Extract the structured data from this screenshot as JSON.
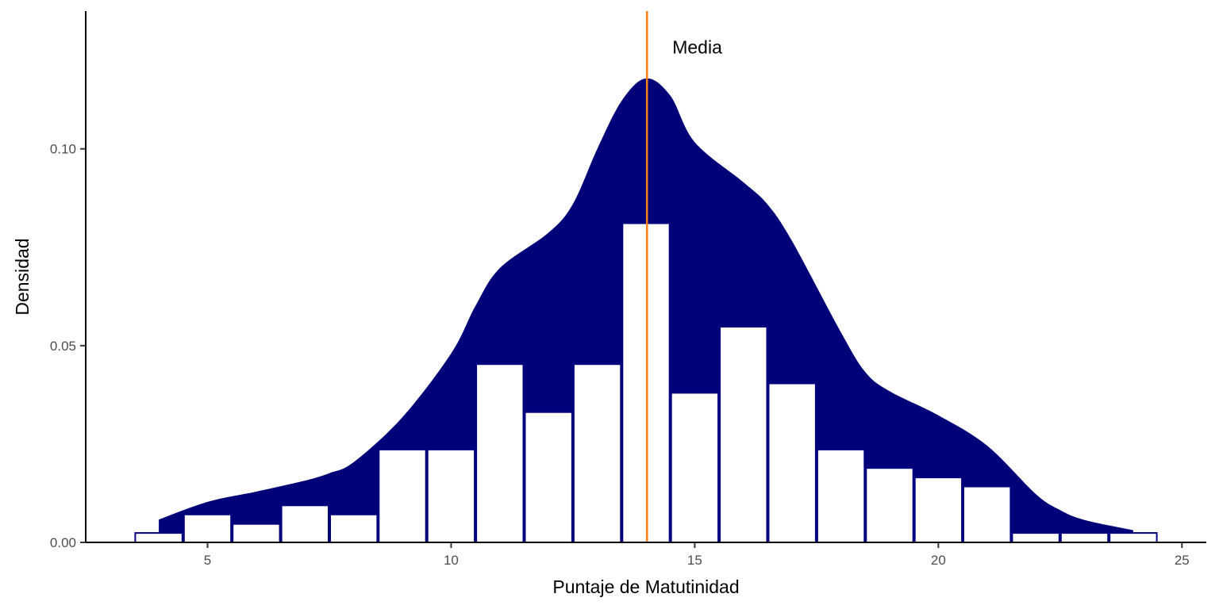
{
  "chart_data": {
    "type": "bar",
    "subtype": "histogram with density overlay",
    "xlabel": "Puntaje de Matutinidad",
    "ylabel": "Densidad",
    "xlim": [
      2.5,
      25.5
    ],
    "ylim": [
      0,
      0.135
    ],
    "x_ticks": [
      5,
      10,
      15,
      20,
      25
    ],
    "x_tick_labels": [
      "5",
      "10",
      "15",
      "20",
      "25"
    ],
    "y_ticks": [
      0,
      0.05,
      0.1
    ],
    "y_tick_labels": [
      "0.00",
      "0.05",
      "0.10"
    ],
    "grid": false,
    "histogram": {
      "bin_width": 1,
      "bins": [
        {
          "x": 4,
          "density": 0.0024
        },
        {
          "x": 5,
          "density": 0.0071
        },
        {
          "x": 6,
          "density": 0.0047
        },
        {
          "x": 7,
          "density": 0.0094
        },
        {
          "x": 8,
          "density": 0.0071
        },
        {
          "x": 9,
          "density": 0.0236
        },
        {
          "x": 10,
          "density": 0.0236
        },
        {
          "x": 11,
          "density": 0.0453
        },
        {
          "x": 12,
          "density": 0.0331
        },
        {
          "x": 13,
          "density": 0.0453
        },
        {
          "x": 14,
          "density": 0.0811
        },
        {
          "x": 15,
          "density": 0.038
        },
        {
          "x": 16,
          "density": 0.0548
        },
        {
          "x": 17,
          "density": 0.0404
        },
        {
          "x": 18,
          "density": 0.0236
        },
        {
          "x": 19,
          "density": 0.0189
        },
        {
          "x": 20,
          "density": 0.0165
        },
        {
          "x": 21,
          "density": 0.0142
        },
        {
          "x": 22,
          "density": 0.0024
        },
        {
          "x": 23,
          "density": 0.0024
        },
        {
          "x": 24,
          "density": 0.0024
        }
      ],
      "fill_color": "#ffffff",
      "outline_color": "#00007f"
    },
    "density": {
      "fill_color": "#000078",
      "x": [
        4.0,
        5.0,
        6.0,
        7.0,
        7.5,
        8.0,
        9.0,
        10.0,
        10.5,
        11.0,
        12.0,
        12.5,
        13.0,
        13.5,
        14.0,
        14.5,
        15.0,
        16.0,
        16.5,
        17.0,
        18.0,
        18.5,
        19.0,
        20.0,
        21.0,
        22.0,
        22.5,
        23.0,
        24.0
      ],
      "y": [
        0.0058,
        0.0103,
        0.0129,
        0.0157,
        0.0176,
        0.0204,
        0.0318,
        0.048,
        0.0601,
        0.0697,
        0.0787,
        0.086,
        0.1,
        0.1122,
        0.1179,
        0.1135,
        0.1017,
        0.0915,
        0.0858,
        0.0765,
        0.0534,
        0.0433,
        0.0384,
        0.0323,
        0.0246,
        0.0123,
        0.0082,
        0.0057,
        0.0031
      ]
    },
    "mean_line": {
      "x": 14.02,
      "color": "#ff7f0e",
      "label": "Media"
    }
  }
}
